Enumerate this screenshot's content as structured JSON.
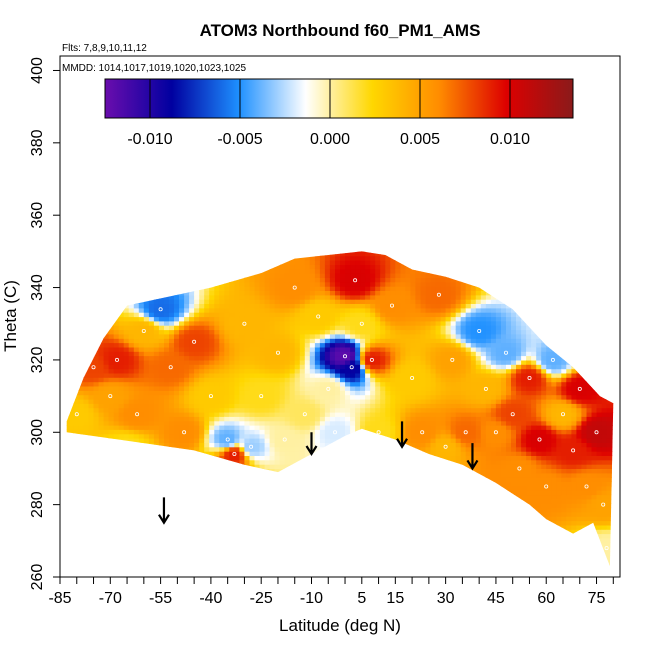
{
  "chart_data": {
    "type": "heatmap",
    "title": "ATOM3 Northbound f60_PM1_AMS",
    "subtitle_flights": "Flts: 7,8,9,10,11,12",
    "subtitle_dates": "MMDD: 1014,1017,1019,1020,1023,1025",
    "xlabel": "Latitude (deg N)",
    "ylabel": "Theta (C)",
    "xlim": [
      -85,
      82
    ],
    "ylim": [
      260,
      404
    ],
    "x_ticks": [
      -85,
      -80,
      -75,
      -70,
      -65,
      -60,
      -55,
      -50,
      -45,
      -40,
      -35,
      -30,
      -25,
      -20,
      -15,
      -10,
      -5,
      0,
      5,
      10,
      15,
      20,
      25,
      30,
      35,
      40,
      45,
      50,
      55,
      60,
      65,
      70,
      75,
      80
    ],
    "x_tick_labels": [
      "-85",
      "-70",
      "-55",
      "-40",
      "-25",
      "-10",
      "5",
      "15",
      "30",
      "45",
      "60",
      "75"
    ],
    "x_tick_label_values": [
      -85,
      -70,
      -55,
      -40,
      -25,
      -10,
      5,
      15,
      30,
      45,
      60,
      75
    ],
    "y_ticks": [
      260,
      280,
      300,
      320,
      340,
      360,
      380,
      400
    ],
    "y_tick_labels": [
      "260",
      "280",
      "300",
      "320",
      "340",
      "360",
      "380",
      "400"
    ],
    "colorbar": {
      "range": [
        -0.0125,
        0.0135
      ],
      "tick_values": [
        -0.01,
        -0.005,
        0,
        0.005,
        0.01
      ],
      "tick_labels": [
        "-0.010",
        "-0.005",
        "0.000",
        "0.005",
        "0.010"
      ],
      "colors": [
        "#6a0dad",
        "#0000a0",
        "#1e90ff",
        "#ffffff",
        "#ffd700",
        "#ff8c00",
        "#dd0000",
        "#8b1a1a"
      ]
    },
    "envelope": {
      "top": [
        [
          -83,
          303
        ],
        [
          -78,
          315
        ],
        [
          -72,
          326
        ],
        [
          -65,
          335
        ],
        [
          -55,
          337
        ],
        [
          -40,
          340
        ],
        [
          -25,
          344
        ],
        [
          -15,
          348
        ],
        [
          -5,
          349
        ],
        [
          5,
          350
        ],
        [
          12,
          349
        ],
        [
          20,
          345
        ],
        [
          30,
          343
        ],
        [
          40,
          340
        ],
        [
          50,
          334
        ],
        [
          60,
          324
        ],
        [
          68,
          318
        ],
        [
          76,
          310
        ],
        [
          80,
          308
        ]
      ],
      "bottom": [
        [
          -83,
          300
        ],
        [
          -60,
          297
        ],
        [
          -45,
          295
        ],
        [
          -30,
          291
        ],
        [
          -20,
          289
        ],
        [
          -10,
          294
        ],
        [
          0,
          299
        ],
        [
          5,
          301
        ],
        [
          15,
          298
        ],
        [
          25,
          294
        ],
        [
          35,
          291
        ],
        [
          45,
          286
        ],
        [
          55,
          280
        ],
        [
          60,
          276
        ],
        [
          68,
          272
        ],
        [
          74,
          275
        ],
        [
          79,
          263
        ]
      ]
    },
    "field_points": [
      {
        "lat": -75,
        "theta": 318,
        "v": 0.008
      },
      {
        "lat": -70,
        "theta": 310,
        "v": 0.005
      },
      {
        "lat": -68,
        "theta": 320,
        "v": 0.009
      },
      {
        "lat": -62,
        "theta": 305,
        "v": 0.006
      },
      {
        "lat": -60,
        "theta": 328,
        "v": 0.004
      },
      {
        "lat": -55,
        "theta": 334,
        "v": -0.006
      },
      {
        "lat": -52,
        "theta": 318,
        "v": 0.007
      },
      {
        "lat": -48,
        "theta": 300,
        "v": 0.006
      },
      {
        "lat": -45,
        "theta": 325,
        "v": 0.008
      },
      {
        "lat": -40,
        "theta": 310,
        "v": 0.003
      },
      {
        "lat": -35,
        "theta": 298,
        "v": -0.004
      },
      {
        "lat": -33,
        "theta": 294,
        "v": 0.009
      },
      {
        "lat": -30,
        "theta": 330,
        "v": 0.004
      },
      {
        "lat": -25,
        "theta": 310,
        "v": 0.002
      },
      {
        "lat": -20,
        "theta": 322,
        "v": 0.004
      },
      {
        "lat": -15,
        "theta": 340,
        "v": 0.006
      },
      {
        "lat": -12,
        "theta": 305,
        "v": 0.001
      },
      {
        "lat": -8,
        "theta": 332,
        "v": 0.003
      },
      {
        "lat": -5,
        "theta": 312,
        "v": 0.0
      },
      {
        "lat": -3,
        "theta": 300,
        "v": -0.002
      },
      {
        "lat": 0,
        "theta": 321,
        "v": -0.012
      },
      {
        "lat": 2,
        "theta": 318,
        "v": -0.009
      },
      {
        "lat": 3,
        "theta": 342,
        "v": 0.01
      },
      {
        "lat": 5,
        "theta": 330,
        "v": 0.002
      },
      {
        "lat": 8,
        "theta": 320,
        "v": 0.009
      },
      {
        "lat": 10,
        "theta": 300,
        "v": 0.002
      },
      {
        "lat": 14,
        "theta": 335,
        "v": 0.006
      },
      {
        "lat": 20,
        "theta": 315,
        "v": 0.003
      },
      {
        "lat": 23,
        "theta": 300,
        "v": 0.006
      },
      {
        "lat": 28,
        "theta": 338,
        "v": 0.007
      },
      {
        "lat": 32,
        "theta": 320,
        "v": 0.005
      },
      {
        "lat": 36,
        "theta": 300,
        "v": 0.007
      },
      {
        "lat": 40,
        "theta": 328,
        "v": -0.005
      },
      {
        "lat": 42,
        "theta": 312,
        "v": 0.004
      },
      {
        "lat": 45,
        "theta": 300,
        "v": 0.006
      },
      {
        "lat": 48,
        "theta": 322,
        "v": -0.004
      },
      {
        "lat": 50,
        "theta": 305,
        "v": 0.008
      },
      {
        "lat": 52,
        "theta": 290,
        "v": 0.006
      },
      {
        "lat": 55,
        "theta": 315,
        "v": 0.009
      },
      {
        "lat": 58,
        "theta": 298,
        "v": 0.01
      },
      {
        "lat": 60,
        "theta": 285,
        "v": 0.006
      },
      {
        "lat": 62,
        "theta": 320,
        "v": -0.004
      },
      {
        "lat": 65,
        "theta": 305,
        "v": 0.004
      },
      {
        "lat": 68,
        "theta": 295,
        "v": 0.009
      },
      {
        "lat": 70,
        "theta": 312,
        "v": 0.01
      },
      {
        "lat": 72,
        "theta": 285,
        "v": 0.006
      },
      {
        "lat": 75,
        "theta": 300,
        "v": 0.011
      },
      {
        "lat": 77,
        "theta": 280,
        "v": 0.005
      },
      {
        "lat": 78,
        "theta": 268,
        "v": 0.0
      },
      {
        "lat": -80,
        "theta": 305,
        "v": 0.003
      },
      {
        "lat": -65,
        "theta": 296,
        "v": 0.002
      },
      {
        "lat": -28,
        "theta": 296,
        "v": -0.003
      },
      {
        "lat": -18,
        "theta": 298,
        "v": 0.0
      },
      {
        "lat": 30,
        "theta": 296,
        "v": 0.004
      }
    ],
    "arrows": [
      {
        "lat": -54,
        "theta_top": 282,
        "theta_tip": 275
      },
      {
        "lat": -10,
        "theta_top": 300,
        "theta_tip": 294
      },
      {
        "lat": 17,
        "theta_top": 303,
        "theta_tip": 296
      },
      {
        "lat": 38,
        "theta_top": 297,
        "theta_tip": 290
      }
    ]
  }
}
